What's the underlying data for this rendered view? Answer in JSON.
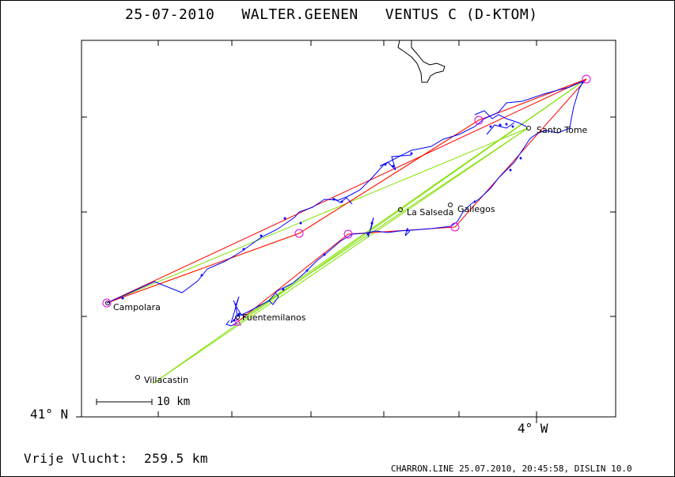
{
  "header": {
    "date": "25-07-2010",
    "pilot": "WALTER.GEENEN",
    "glider": "VENTUS C (D-KTOM)"
  },
  "axes": {
    "lat_label": "41° N",
    "lon_label": "4° W"
  },
  "scale_bar": {
    "label": "10 km"
  },
  "flight": {
    "distance_label": "Vrije Vlucht:",
    "distance_value": "259.5 km"
  },
  "footer": "CHARRON.LINE 25.07.2010, 20:45:58, DISLIN 10.0",
  "places": [
    {
      "name": "Santo Tome"
    },
    {
      "name": "La Salseda"
    },
    {
      "name": "Gallegos"
    },
    {
      "name": "Campolara"
    },
    {
      "name": "Fuentemilanos"
    },
    {
      "name": "Villacastin"
    }
  ],
  "colors": {
    "track": "#0000ff",
    "route_red": "#ff0000",
    "route_green": "#80e000",
    "route_yellow": "#ffd800",
    "turnpoint": "#e000e0",
    "border": "#000000"
  }
}
